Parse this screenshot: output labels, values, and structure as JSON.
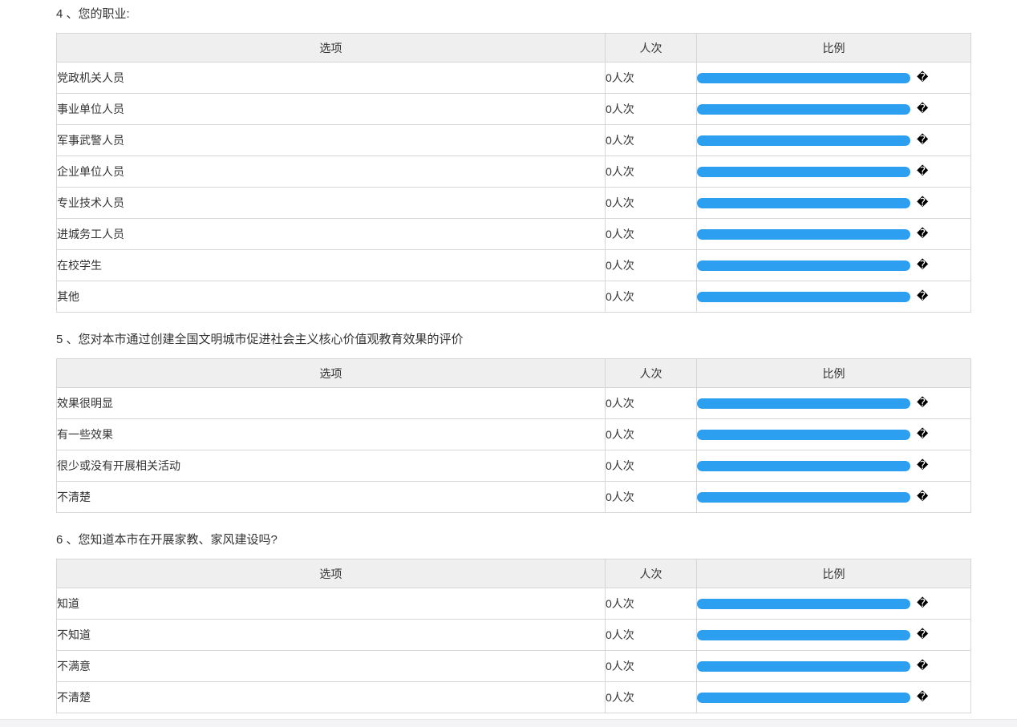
{
  "columns": {
    "option": "选项",
    "count": "人次",
    "ratio": "比例"
  },
  "colors": {
    "bar": "#2d9ff0",
    "header_bg": "#efefef",
    "border": "#d6d6d6",
    "text": "#333333",
    "footer_bg": "#f4f4f6"
  },
  "questions": [
    {
      "number_title": "4 、您的职业:",
      "rows": [
        {
          "option": "党政机关人员",
          "count": "0人次",
          "ratio_label": "�"
        },
        {
          "option": "事业单位人员",
          "count": "0人次",
          "ratio_label": "�"
        },
        {
          "option": "军事武警人员",
          "count": "0人次",
          "ratio_label": "�"
        },
        {
          "option": "企业单位人员",
          "count": "0人次",
          "ratio_label": "�"
        },
        {
          "option": "专业技术人员",
          "count": "0人次",
          "ratio_label": "�"
        },
        {
          "option": "进城务工人员",
          "count": "0人次",
          "ratio_label": "�"
        },
        {
          "option": "在校学生",
          "count": "0人次",
          "ratio_label": "�"
        },
        {
          "option": "其他",
          "count": "0人次",
          "ratio_label": "�"
        }
      ]
    },
    {
      "number_title": "5 、您对本市通过创建全国文明城市促进社会主义核心价值观教育效果的评价",
      "rows": [
        {
          "option": "效果很明显",
          "count": "0人次",
          "ratio_label": "�"
        },
        {
          "option": "有一些效果",
          "count": "0人次",
          "ratio_label": "�"
        },
        {
          "option": "很少或没有开展相关活动",
          "count": "0人次",
          "ratio_label": "�"
        },
        {
          "option": "不清楚",
          "count": "0人次",
          "ratio_label": "�"
        }
      ]
    },
    {
      "number_title": "6 、您知道本市在开展家教、家风建设吗?",
      "rows": [
        {
          "option": "知道",
          "count": "0人次",
          "ratio_label": "�"
        },
        {
          "option": "不知道",
          "count": "0人次",
          "ratio_label": "�"
        },
        {
          "option": "不满意",
          "count": "0人次",
          "ratio_label": "�"
        },
        {
          "option": "不清楚",
          "count": "0人次",
          "ratio_label": "�"
        }
      ]
    }
  ]
}
